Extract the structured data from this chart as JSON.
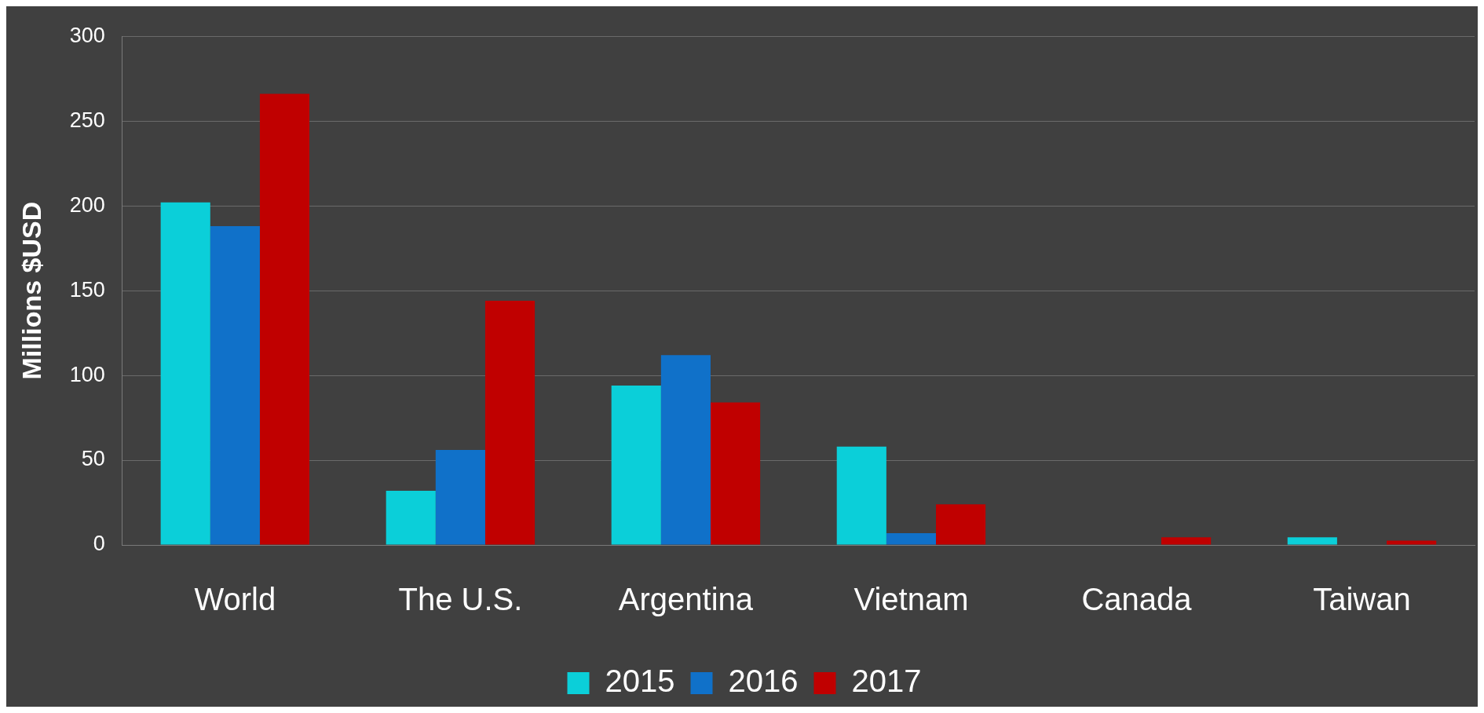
{
  "chart_data": {
    "type": "bar",
    "ylabel": "Millions $USD",
    "categories": [
      "World",
      "The U.S.",
      "Argentina",
      "Vietnam",
      "Canada",
      "Taiwan"
    ],
    "series": [
      {
        "name": "2015",
        "color": "#0bcfd9",
        "values": [
          202,
          32,
          94,
          58,
          0,
          4.5
        ]
      },
      {
        "name": "2016",
        "color": "#1071c9",
        "values": [
          188,
          56,
          112,
          7,
          0,
          0
        ]
      },
      {
        "name": "2017",
        "color": "#c00000",
        "values": [
          266,
          144,
          84,
          24,
          4.5,
          2.5
        ]
      }
    ],
    "ylim": [
      0,
      300
    ],
    "yticks": [
      0,
      50,
      100,
      150,
      200,
      250,
      300
    ],
    "grid": "y",
    "legend": "bottom"
  }
}
